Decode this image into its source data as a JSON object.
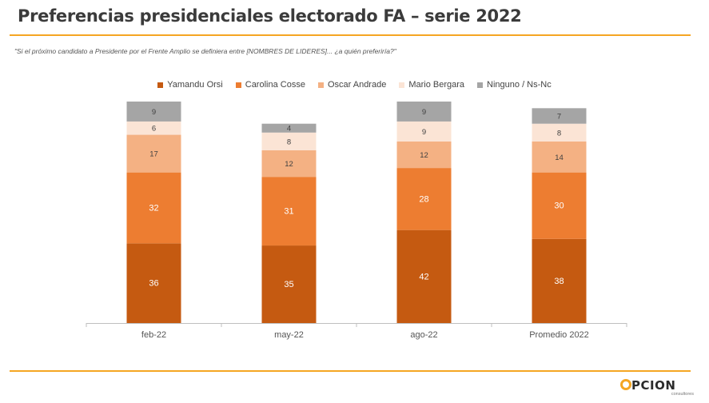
{
  "title": "Preferencias presidenciales electorado FA – serie 2022",
  "question": "\"Si el próximo candidato a Presidente por el Frente Amplio se definiera entre [NOMBRES DE LIDERES]... ¿a quién preferiría?\"",
  "logo": {
    "word": "PCION",
    "sub": "consultores"
  },
  "chart_data": {
    "type": "bar",
    "stacked": true,
    "categories": [
      "feb-22",
      "may-22",
      "ago-22",
      "Promedio 2022"
    ],
    "series": [
      {
        "name": "Yamandu Orsi",
        "color": "#c55a11",
        "values": [
          36,
          35,
          42,
          38
        ]
      },
      {
        "name": "Carolina Cosse",
        "color": "#ed7d31",
        "values": [
          32,
          31,
          28,
          30
        ]
      },
      {
        "name": "Oscar Andrade",
        "color": "#f4b183",
        "values": [
          17,
          12,
          12,
          14
        ]
      },
      {
        "name": "Mario Bergara",
        "color": "#fbe4d5",
        "values": [
          6,
          8,
          9,
          8
        ]
      },
      {
        "name": "Ninguno / Ns-Nc",
        "color": "#a5a5a5",
        "values": [
          9,
          4,
          9,
          7
        ]
      }
    ],
    "ylim": [
      0,
      100
    ],
    "grid": false,
    "legend_position": "top"
  }
}
